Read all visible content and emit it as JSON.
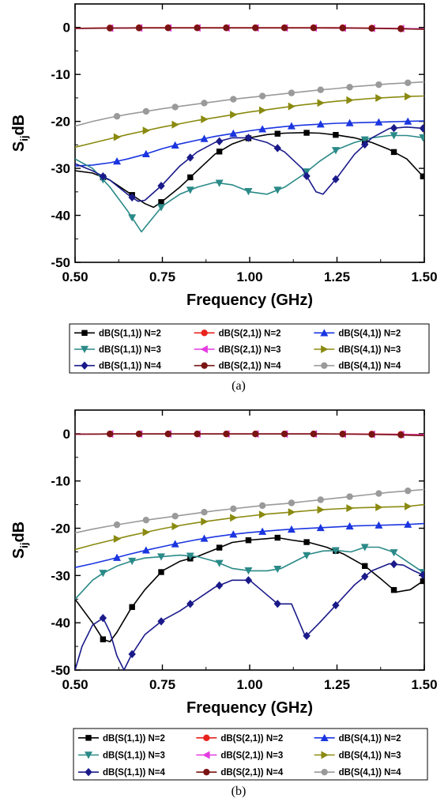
{
  "chart_data": [
    {
      "type": "line",
      "caption": "(a)",
      "xlabel": "Frequency (GHz)",
      "ylabel_main": "S",
      "ylabel_sub": "ij",
      "ylabel_suffix": "dB",
      "xlim": [
        0.5,
        1.5
      ],
      "ylim": [
        -50,
        5
      ],
      "xticks": [
        "0.50",
        "0.75",
        "1.00",
        "1.25",
        "1.50"
      ],
      "yticks": [
        "0",
        "-10",
        "-20",
        "-30",
        "-40",
        "-50"
      ],
      "grid": false,
      "legend_position": "bottom",
      "series": [
        {
          "name": "dB(S(1,1)) N=2",
          "color": "#000000",
          "marker": "square",
          "x": [
            0.5,
            0.55,
            0.6,
            0.65,
            0.7,
            0.725,
            0.75,
            0.8,
            0.85,
            0.9,
            0.95,
            1.0,
            1.05,
            1.1,
            1.15,
            1.2,
            1.25,
            1.3,
            1.35,
            1.4,
            1.45,
            1.5
          ],
          "y": [
            -30.5,
            -31,
            -32.5,
            -35,
            -37.5,
            -38.3,
            -37,
            -34,
            -30.5,
            -27,
            -24.8,
            -23.5,
            -22.8,
            -22.5,
            -22.4,
            -22.5,
            -22.9,
            -23.5,
            -24.5,
            -26,
            -28,
            -32
          ]
        },
        {
          "name": "dB(S(2,1)) N=2",
          "color": "#e8231c",
          "marker": "circle",
          "x": [
            0.5,
            0.55,
            0.6,
            0.65,
            0.7,
            0.75,
            0.8,
            0.85,
            0.9,
            0.95,
            1.0,
            1.05,
            1.1,
            1.15,
            1.2,
            1.25,
            1.3,
            1.35,
            1.4,
            1.45,
            1.5
          ],
          "y": [
            -0.2,
            -0.15,
            -0.1,
            -0.1,
            -0.05,
            -0.05,
            -0.05,
            -0.05,
            -0.05,
            -0.05,
            -0.05,
            -0.05,
            -0.05,
            -0.05,
            -0.05,
            -0.05,
            -0.1,
            -0.15,
            -0.2,
            -0.25,
            -0.3
          ]
        },
        {
          "name": "dB(S(4,1)) N=2",
          "color": "#1a35e0",
          "marker": "triangle-up",
          "x": [
            0.5,
            0.55,
            0.6,
            0.65,
            0.7,
            0.75,
            0.8,
            0.85,
            0.9,
            0.95,
            1.0,
            1.05,
            1.1,
            1.15,
            1.2,
            1.25,
            1.3,
            1.35,
            1.4,
            1.45,
            1.5
          ],
          "y": [
            -29.5,
            -29.3,
            -28.8,
            -28,
            -27,
            -25.8,
            -24.8,
            -24,
            -23.2,
            -22.6,
            -22,
            -21.5,
            -21.1,
            -20.8,
            -20.6,
            -20.4,
            -20.3,
            -20.2,
            -20.1,
            -20,
            -19.9
          ]
        },
        {
          "name": "dB(S(1,1)) N=3",
          "color": "#2a8a88",
          "marker": "triangle-down",
          "x": [
            0.5,
            0.55,
            0.6,
            0.65,
            0.69,
            0.75,
            0.8,
            0.85,
            0.9,
            0.95,
            1.0,
            1.05,
            1.1,
            1.15,
            1.2,
            1.25,
            1.3,
            1.35,
            1.4,
            1.45,
            1.5
          ],
          "y": [
            -28,
            -30,
            -34,
            -39,
            -43.5,
            -38,
            -35.5,
            -34,
            -33,
            -33.5,
            -35,
            -35.5,
            -34,
            -31.5,
            -28.5,
            -26,
            -24.5,
            -23.5,
            -23,
            -23,
            -23.5
          ]
        },
        {
          "name": "dB(S(2,1)) N=3",
          "color": "#e43ae0",
          "marker": "triangle-left",
          "x": [
            0.5,
            0.6,
            0.7,
            0.8,
            0.9,
            1.0,
            1.1,
            1.2,
            1.3,
            1.4,
            1.5
          ],
          "y": [
            -0.2,
            -0.15,
            -0.1,
            -0.1,
            -0.1,
            -0.1,
            -0.1,
            -0.1,
            -0.15,
            -0.2,
            -0.3
          ]
        },
        {
          "name": "dB(S(4,1)) N=3",
          "color": "#8a8a10",
          "marker": "triangle-right",
          "x": [
            0.5,
            0.55,
            0.6,
            0.65,
            0.7,
            0.75,
            0.8,
            0.85,
            0.9,
            0.95,
            1.0,
            1.05,
            1.1,
            1.15,
            1.2,
            1.25,
            1.3,
            1.35,
            1.4,
            1.45,
            1.5
          ],
          "y": [
            -25.5,
            -24.6,
            -23.7,
            -22.8,
            -22,
            -21.2,
            -20.5,
            -19.8,
            -19.2,
            -18.6,
            -18,
            -17.5,
            -17,
            -16.5,
            -16.1,
            -15.7,
            -15.4,
            -15.1,
            -14.9,
            -14.7,
            -14.6
          ]
        },
        {
          "name": "dB(S(1,1)) N=4",
          "color": "#1a1a8a",
          "marker": "diamond",
          "x": [
            0.5,
            0.55,
            0.6,
            0.65,
            0.68,
            0.7,
            0.75,
            0.8,
            0.85,
            0.9,
            0.95,
            1.0,
            1.05,
            1.1,
            1.15,
            1.19,
            1.21,
            1.25,
            1.3,
            1.35,
            1.4,
            1.45,
            1.5
          ],
          "y": [
            -29,
            -30.5,
            -32.5,
            -35.5,
            -37,
            -36.8,
            -33.5,
            -29.5,
            -26.5,
            -24.5,
            -23.5,
            -23.5,
            -24.5,
            -26.5,
            -30,
            -35,
            -35.5,
            -32,
            -27,
            -23.5,
            -21.5,
            -21.2,
            -21.5
          ]
        },
        {
          "name": "dB(S(2,1)) N=4",
          "color": "#7a1414",
          "marker": "circle",
          "x": [
            0.5,
            0.6,
            0.7,
            0.8,
            0.9,
            1.0,
            1.1,
            1.2,
            1.3,
            1.4,
            1.5
          ],
          "y": [
            -0.2,
            -0.15,
            -0.1,
            -0.1,
            -0.1,
            -0.1,
            -0.1,
            -0.1,
            -0.15,
            -0.25,
            -0.4
          ]
        },
        {
          "name": "dB(S(4,1)) N=4",
          "color": "#9a9a9a",
          "marker": "circle",
          "x": [
            0.5,
            0.55,
            0.6,
            0.65,
            0.7,
            0.75,
            0.8,
            0.85,
            0.9,
            0.95,
            1.0,
            1.05,
            1.1,
            1.15,
            1.2,
            1.25,
            1.3,
            1.35,
            1.4,
            1.45,
            1.5
          ],
          "y": [
            -21,
            -20,
            -19.2,
            -18.5,
            -17.9,
            -17.3,
            -16.8,
            -16.3,
            -15.8,
            -15.3,
            -14.9,
            -14.5,
            -14.1,
            -13.7,
            -13.3,
            -13,
            -12.6,
            -12.3,
            -12,
            -11.8,
            -11.6
          ]
        }
      ]
    },
    {
      "type": "line",
      "caption": "(b)",
      "xlabel": "Frequency (GHz)",
      "ylabel_main": "S",
      "ylabel_sub": "ij",
      "ylabel_suffix": "dB",
      "xlim": [
        0.5,
        1.5
      ],
      "ylim": [
        -50,
        5
      ],
      "xticks": [
        "0.50",
        "0.75",
        "1.00",
        "1.25",
        "1.50"
      ],
      "yticks": [
        "0",
        "-10",
        "-20",
        "-30",
        "-40",
        "-50"
      ],
      "grid": false,
      "legend_position": "bottom",
      "series": [
        {
          "name": "dB(S(1,1)) N=2",
          "color": "#000000",
          "marker": "square",
          "x": [
            0.5,
            0.55,
            0.58,
            0.6,
            0.62,
            0.66,
            0.7,
            0.75,
            0.8,
            0.85,
            0.9,
            0.95,
            1.0,
            1.05,
            1.08,
            1.12,
            1.17,
            1.22,
            1.27,
            1.33,
            1.38,
            1.42,
            1.46,
            1.5
          ],
          "y": [
            -35,
            -40,
            -43.5,
            -44,
            -42,
            -37,
            -33,
            -29,
            -27,
            -26,
            -24.5,
            -23,
            -22.5,
            -22.2,
            -22,
            -22.5,
            -23,
            -24,
            -25.5,
            -28,
            -31,
            -33.5,
            -33,
            -31
          ]
        },
        {
          "name": "dB(S(2,1)) N=2",
          "color": "#e8231c",
          "marker": "circle",
          "x": [
            0.5,
            0.6,
            0.7,
            0.8,
            0.9,
            1.0,
            1.1,
            1.2,
            1.3,
            1.4,
            1.5
          ],
          "y": [
            -0.1,
            -0.05,
            -0.05,
            -0.05,
            -0.05,
            -0.05,
            -0.05,
            -0.05,
            -0.05,
            -0.1,
            -0.2
          ]
        },
        {
          "name": "dB(S(4,1)) N=2",
          "color": "#1a35e0",
          "marker": "triangle-up",
          "x": [
            0.5,
            0.55,
            0.6,
            0.65,
            0.7,
            0.75,
            0.8,
            0.85,
            0.9,
            0.95,
            1.0,
            1.05,
            1.1,
            1.15,
            1.2,
            1.25,
            1.3,
            1.35,
            1.4,
            1.45,
            1.5
          ],
          "y": [
            -28.3,
            -27.5,
            -26.6,
            -25.6,
            -24.7,
            -23.9,
            -23.1,
            -22.4,
            -21.8,
            -21.3,
            -20.9,
            -20.6,
            -20.3,
            -20.1,
            -19.9,
            -19.7,
            -19.5,
            -19.4,
            -19.3,
            -19.2,
            -19
          ]
        },
        {
          "name": "dB(S(1,1)) N=3",
          "color": "#2a8a88",
          "marker": "triangle-down",
          "x": [
            0.5,
            0.55,
            0.58,
            0.62,
            0.66,
            0.7,
            0.75,
            0.8,
            0.85,
            0.9,
            0.95,
            1.0,
            1.05,
            1.09,
            1.13,
            1.17,
            1.21,
            1.25,
            1.29,
            1.33,
            1.37,
            1.41,
            1.45,
            1.5
          ],
          "y": [
            -35,
            -31,
            -29.5,
            -28,
            -27,
            -26.3,
            -26,
            -25.7,
            -26,
            -27,
            -28.5,
            -29,
            -29,
            -28.5,
            -27,
            -25.5,
            -24.8,
            -24.7,
            -25,
            -24,
            -24,
            -25,
            -27,
            -29.5
          ]
        },
        {
          "name": "dB(S(2,1)) N=3",
          "color": "#e43ae0",
          "marker": "triangle-left",
          "x": [
            0.5,
            0.6,
            0.7,
            0.8,
            0.9,
            1.0,
            1.1,
            1.2,
            1.3,
            1.4,
            1.5
          ],
          "y": [
            -0.1,
            -0.05,
            -0.05,
            -0.05,
            -0.05,
            -0.05,
            -0.05,
            -0.05,
            -0.1,
            -0.15,
            -0.25
          ]
        },
        {
          "name": "dB(S(4,1)) N=3",
          "color": "#8a8a10",
          "marker": "triangle-right",
          "x": [
            0.5,
            0.55,
            0.6,
            0.65,
            0.7,
            0.75,
            0.8,
            0.85,
            0.9,
            0.95,
            1.0,
            1.05,
            1.1,
            1.15,
            1.2,
            1.25,
            1.3,
            1.35,
            1.4,
            1.45,
            1.5
          ],
          "y": [
            -24.5,
            -23.5,
            -22.6,
            -21.7,
            -20.9,
            -20.1,
            -19.4,
            -18.8,
            -18.3,
            -17.8,
            -17.4,
            -17,
            -16.7,
            -16.4,
            -16.1,
            -15.9,
            -15.7,
            -15.6,
            -15.5,
            -15.4,
            -15
          ]
        },
        {
          "name": "dB(S(1,1)) N=4",
          "color": "#1a1a8a",
          "marker": "diamond",
          "x": [
            0.5,
            0.52,
            0.55,
            0.58,
            0.6,
            0.62,
            0.64,
            0.66,
            0.7,
            0.75,
            0.8,
            0.85,
            0.9,
            0.95,
            1.0,
            1.04,
            1.08,
            1.12,
            1.16,
            1.2,
            1.25,
            1.3,
            1.35,
            1.4,
            1.44,
            1.47,
            1.5
          ],
          "y": [
            -50,
            -45,
            -40.5,
            -39,
            -42,
            -47,
            -50,
            -47,
            -42.5,
            -39.5,
            -37.5,
            -35,
            -32.5,
            -31,
            -31,
            -33.5,
            -36,
            -36,
            -43,
            -40,
            -36,
            -32,
            -29,
            -27.5,
            -27.8,
            -29,
            -30
          ]
        },
        {
          "name": "dB(S(2,1)) N=4",
          "color": "#7a1414",
          "marker": "circle",
          "x": [
            0.5,
            0.6,
            0.7,
            0.8,
            0.9,
            1.0,
            1.1,
            1.2,
            1.3,
            1.4,
            1.5
          ],
          "y": [
            -0.1,
            -0.05,
            -0.05,
            -0.05,
            -0.05,
            -0.05,
            -0.05,
            -0.05,
            -0.1,
            -0.2,
            -0.4
          ]
        },
        {
          "name": "dB(S(4,1)) N=4",
          "color": "#9a9a9a",
          "marker": "circle",
          "x": [
            0.5,
            0.55,
            0.6,
            0.65,
            0.7,
            0.75,
            0.8,
            0.85,
            0.9,
            0.95,
            1.0,
            1.05,
            1.1,
            1.15,
            1.2,
            1.25,
            1.3,
            1.35,
            1.4,
            1.45,
            1.5
          ],
          "y": [
            -21,
            -20.2,
            -19.5,
            -18.9,
            -18.3,
            -17.8,
            -17.3,
            -16.8,
            -16.3,
            -15.9,
            -15.5,
            -15.1,
            -14.8,
            -14.4,
            -14,
            -13.6,
            -13.2,
            -12.8,
            -12.4,
            -12.1,
            -11.8
          ]
        }
      ]
    }
  ]
}
